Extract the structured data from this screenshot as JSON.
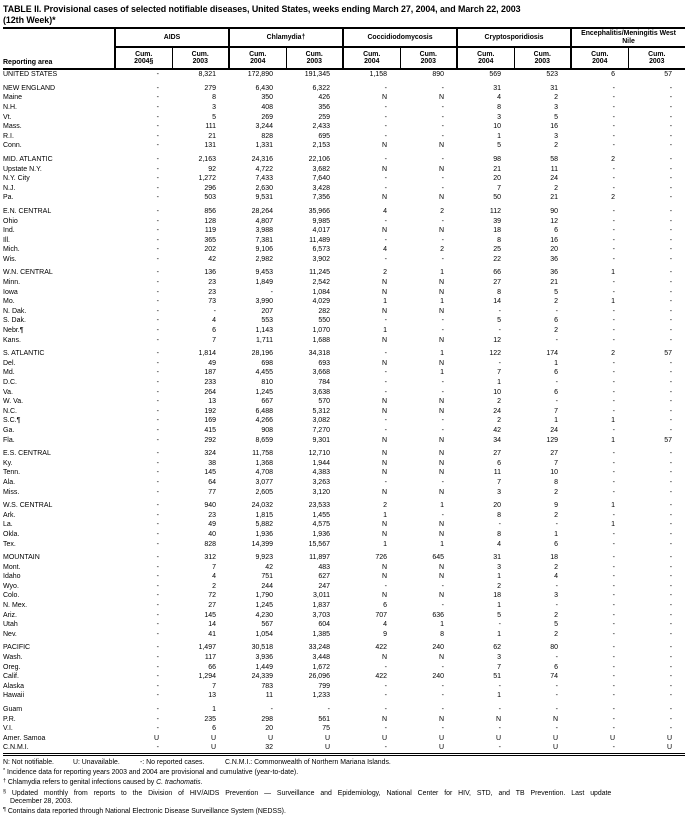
{
  "title": {
    "line1": "TABLE II. Provisional cases of selected notifiable diseases, United States, weeks ending March 27, 2004, and March 22, 2003",
    "line2": "(12th Week)*"
  },
  "header": {
    "reporting_area_label": "Reporting area",
    "groups": [
      {
        "label": "AIDS",
        "sub": [
          [
            "Cum.",
            "2004§"
          ],
          [
            "Cum.",
            "2003"
          ]
        ]
      },
      {
        "label": "Chlamydia†",
        "sub": [
          [
            "Cum.",
            "2004"
          ],
          [
            "Cum.",
            "2003"
          ]
        ]
      },
      {
        "label": "Coccidiodomycosis",
        "sub": [
          [
            "Cum.",
            "2004"
          ],
          [
            "Cum.",
            "2003"
          ]
        ]
      },
      {
        "label": "Cryptosporidiosis",
        "sub": [
          [
            "Cum.",
            "2004"
          ],
          [
            "Cum.",
            "2003"
          ]
        ]
      },
      {
        "label": "Encephalitis/Meningitis West Nile",
        "sub": [
          [
            "Cum.",
            "2004"
          ],
          [
            "Cum.",
            "2003"
          ]
        ]
      }
    ]
  },
  "sections": [
    {
      "rows": [
        [
          "UNITED STATES",
          [
            "-",
            "8,321",
            "172,890",
            "191,345",
            "1,158",
            "890",
            "569",
            "523",
            "6",
            "57"
          ]
        ]
      ]
    },
    {
      "rows": [
        [
          "NEW ENGLAND",
          [
            "-",
            "279",
            "6,430",
            "6,322",
            "-",
            "-",
            "31",
            "31",
            "-",
            "-"
          ]
        ],
        [
          "Maine",
          [
            "-",
            "8",
            "350",
            "426",
            "N",
            "N",
            "4",
            "2",
            "-",
            "-"
          ]
        ],
        [
          "N.H.",
          [
            "-",
            "3",
            "408",
            "356",
            "-",
            "-",
            "8",
            "3",
            "-",
            "-"
          ]
        ],
        [
          "Vt.",
          [
            "-",
            "5",
            "269",
            "259",
            "-",
            "-",
            "3",
            "5",
            "-",
            "-"
          ]
        ],
        [
          "Mass.",
          [
            "-",
            "111",
            "3,244",
            "2,433",
            "-",
            "-",
            "10",
            "16",
            "-",
            "-"
          ]
        ],
        [
          "R.I.",
          [
            "-",
            "21",
            "828",
            "695",
            "-",
            "-",
            "1",
            "3",
            "-",
            "-"
          ]
        ],
        [
          "Conn.",
          [
            "-",
            "131",
            "1,331",
            "2,153",
            "N",
            "N",
            "5",
            "2",
            "-",
            "-"
          ]
        ]
      ]
    },
    {
      "rows": [
        [
          "MID. ATLANTIC",
          [
            "-",
            "2,163",
            "24,316",
            "22,106",
            "-",
            "-",
            "98",
            "58",
            "2",
            "-"
          ]
        ],
        [
          "Upstate N.Y.",
          [
            "-",
            "92",
            "4,722",
            "3,682",
            "N",
            "N",
            "21",
            "11",
            "-",
            "-"
          ]
        ],
        [
          "N.Y. City",
          [
            "-",
            "1,272",
            "7,433",
            "7,640",
            "-",
            "-",
            "20",
            "24",
            "-",
            "-"
          ]
        ],
        [
          "N.J.",
          [
            "-",
            "296",
            "2,630",
            "3,428",
            "-",
            "-",
            "7",
            "2",
            "-",
            "-"
          ]
        ],
        [
          "Pa.",
          [
            "-",
            "503",
            "9,531",
            "7,356",
            "N",
            "N",
            "50",
            "21",
            "2",
            "-"
          ]
        ]
      ]
    },
    {
      "rows": [
        [
          "E.N. CENTRAL",
          [
            "-",
            "856",
            "28,264",
            "35,966",
            "4",
            "2",
            "112",
            "90",
            "-",
            "-"
          ]
        ],
        [
          "Ohio",
          [
            "-",
            "128",
            "4,807",
            "9,985",
            "-",
            "-",
            "39",
            "12",
            "-",
            "-"
          ]
        ],
        [
          "Ind.",
          [
            "-",
            "119",
            "3,988",
            "4,017",
            "N",
            "N",
            "18",
            "6",
            "-",
            "-"
          ]
        ],
        [
          "Ill.",
          [
            "-",
            "365",
            "7,381",
            "11,489",
            "-",
            "-",
            "8",
            "16",
            "-",
            "-"
          ]
        ],
        [
          "Mich.",
          [
            "-",
            "202",
            "9,106",
            "6,573",
            "4",
            "2",
            "25",
            "20",
            "-",
            "-"
          ]
        ],
        [
          "Wis.",
          [
            "-",
            "42",
            "2,982",
            "3,902",
            "-",
            "-",
            "22",
            "36",
            "-",
            "-"
          ]
        ]
      ]
    },
    {
      "rows": [
        [
          "W.N. CENTRAL",
          [
            "-",
            "136",
            "9,453",
            "11,245",
            "2",
            "1",
            "66",
            "36",
            "1",
            "-"
          ]
        ],
        [
          "Minn.",
          [
            "-",
            "23",
            "1,849",
            "2,542",
            "N",
            "N",
            "27",
            "21",
            "-",
            "-"
          ]
        ],
        [
          "Iowa",
          [
            "-",
            "23",
            "-",
            "1,084",
            "N",
            "N",
            "8",
            "5",
            "-",
            "-"
          ]
        ],
        [
          "Mo.",
          [
            "-",
            "73",
            "3,990",
            "4,029",
            "1",
            "1",
            "14",
            "2",
            "1",
            "-"
          ]
        ],
        [
          "N. Dak.",
          [
            "-",
            "-",
            "207",
            "282",
            "N",
            "N",
            "-",
            "-",
            "-",
            "-"
          ]
        ],
        [
          "S. Dak.",
          [
            "-",
            "4",
            "553",
            "550",
            "-",
            "-",
            "5",
            "6",
            "-",
            "-"
          ]
        ],
        [
          "Nebr.¶",
          [
            "-",
            "6",
            "1,143",
            "1,070",
            "1",
            "-",
            "-",
            "2",
            "-",
            "-"
          ]
        ],
        [
          "Kans.",
          [
            "-",
            "7",
            "1,711",
            "1,688",
            "N",
            "N",
            "12",
            "-",
            "-",
            "-"
          ]
        ]
      ]
    },
    {
      "rows": [
        [
          "S. ATLANTIC",
          [
            "-",
            "1,814",
            "28,196",
            "34,318",
            "-",
            "1",
            "122",
            "174",
            "2",
            "57"
          ]
        ],
        [
          "Del.",
          [
            "-",
            "49",
            "698",
            "693",
            "N",
            "N",
            "-",
            "1",
            "-",
            "-"
          ]
        ],
        [
          "Md.",
          [
            "-",
            "187",
            "4,455",
            "3,668",
            "-",
            "1",
            "7",
            "6",
            "-",
            "-"
          ]
        ],
        [
          "D.C.",
          [
            "-",
            "233",
            "810",
            "784",
            "-",
            "-",
            "1",
            "-",
            "-",
            "-"
          ]
        ],
        [
          "Va.",
          [
            "-",
            "264",
            "1,245",
            "3,638",
            "-",
            "-",
            "10",
            "6",
            "-",
            "-"
          ]
        ],
        [
          "W. Va.",
          [
            "-",
            "13",
            "667",
            "570",
            "N",
            "N",
            "2",
            "-",
            "-",
            "-"
          ]
        ],
        [
          "N.C.",
          [
            "-",
            "192",
            "6,488",
            "5,312",
            "N",
            "N",
            "24",
            "7",
            "-",
            "-"
          ]
        ],
        [
          "S.C.¶",
          [
            "-",
            "169",
            "4,266",
            "3,082",
            "-",
            "-",
            "2",
            "1",
            "1",
            "-"
          ]
        ],
        [
          "Ga.",
          [
            "-",
            "415",
            "908",
            "7,270",
            "-",
            "-",
            "42",
            "24",
            "-",
            "-"
          ]
        ],
        [
          "Fla.",
          [
            "-",
            "292",
            "8,659",
            "9,301",
            "N",
            "N",
            "34",
            "129",
            "1",
            "57"
          ]
        ]
      ]
    },
    {
      "rows": [
        [
          "E.S. CENTRAL",
          [
            "-",
            "324",
            "11,758",
            "12,710",
            "N",
            "N",
            "27",
            "27",
            "-",
            "-"
          ]
        ],
        [
          "Ky.",
          [
            "-",
            "38",
            "1,368",
            "1,944",
            "N",
            "N",
            "6",
            "7",
            "-",
            "-"
          ]
        ],
        [
          "Tenn.",
          [
            "-",
            "145",
            "4,708",
            "4,383",
            "N",
            "N",
            "11",
            "10",
            "-",
            "-"
          ]
        ],
        [
          "Ala.",
          [
            "-",
            "64",
            "3,077",
            "3,263",
            "-",
            "-",
            "7",
            "8",
            "-",
            "-"
          ]
        ],
        [
          "Miss.",
          [
            "-",
            "77",
            "2,605",
            "3,120",
            "N",
            "N",
            "3",
            "2",
            "-",
            "-"
          ]
        ]
      ]
    },
    {
      "rows": [
        [
          "W.S. CENTRAL",
          [
            "-",
            "940",
            "24,032",
            "23,533",
            "2",
            "1",
            "20",
            "9",
            "1",
            "-"
          ]
        ],
        [
          "Ark.",
          [
            "-",
            "23",
            "1,815",
            "1,455",
            "1",
            "-",
            "8",
            "2",
            "-",
            "-"
          ]
        ],
        [
          "La.",
          [
            "-",
            "49",
            "5,882",
            "4,575",
            "N",
            "N",
            "-",
            "-",
            "1",
            "-"
          ]
        ],
        [
          "Okla.",
          [
            "-",
            "40",
            "1,936",
            "1,936",
            "N",
            "N",
            "8",
            "1",
            "-",
            "-"
          ]
        ],
        [
          "Tex.",
          [
            "-",
            "828",
            "14,399",
            "15,567",
            "1",
            "1",
            "4",
            "6",
            "-",
            "-"
          ]
        ]
      ]
    },
    {
      "rows": [
        [
          "MOUNTAIN",
          [
            "-",
            "312",
            "9,923",
            "11,897",
            "726",
            "645",
            "31",
            "18",
            "-",
            "-"
          ]
        ],
        [
          "Mont.",
          [
            "-",
            "7",
            "42",
            "483",
            "N",
            "N",
            "3",
            "2",
            "-",
            "-"
          ]
        ],
        [
          "Idaho",
          [
            "-",
            "4",
            "751",
            "627",
            "N",
            "N",
            "1",
            "4",
            "-",
            "-"
          ]
        ],
        [
          "Wyo.",
          [
            "-",
            "2",
            "244",
            "247",
            "-",
            "-",
            "2",
            "-",
            "-",
            "-"
          ]
        ],
        [
          "Colo.",
          [
            "-",
            "72",
            "1,790",
            "3,011",
            "N",
            "N",
            "18",
            "3",
            "-",
            "-"
          ]
        ],
        [
          "N. Mex.",
          [
            "-",
            "27",
            "1,245",
            "1,837",
            "6",
            "-",
            "1",
            "-",
            "-",
            "-"
          ]
        ],
        [
          "Ariz.",
          [
            "-",
            "145",
            "4,230",
            "3,703",
            "707",
            "636",
            "5",
            "2",
            "-",
            "-"
          ]
        ],
        [
          "Utah",
          [
            "-",
            "14",
            "567",
            "604",
            "4",
            "1",
            "-",
            "5",
            "-",
            "-"
          ]
        ],
        [
          "Nev.",
          [
            "-",
            "41",
            "1,054",
            "1,385",
            "9",
            "8",
            "1",
            "2",
            "-",
            "-"
          ]
        ]
      ]
    },
    {
      "rows": [
        [
          "PACIFIC",
          [
            "-",
            "1,497",
            "30,518",
            "33,248",
            "422",
            "240",
            "62",
            "80",
            "-",
            "-"
          ]
        ],
        [
          "Wash.",
          [
            "-",
            "117",
            "3,936",
            "3,448",
            "N",
            "N",
            "3",
            "-",
            "-",
            "-"
          ]
        ],
        [
          "Oreg.",
          [
            "-",
            "66",
            "1,449",
            "1,672",
            "-",
            "-",
            "7",
            "6",
            "-",
            "-"
          ]
        ],
        [
          "Calif.",
          [
            "-",
            "1,294",
            "24,339",
            "26,096",
            "422",
            "240",
            "51",
            "74",
            "-",
            "-"
          ]
        ],
        [
          "Alaska",
          [
            "-",
            "7",
            "783",
            "799",
            "-",
            "-",
            "-",
            "-",
            "-",
            "-"
          ]
        ],
        [
          "Hawaii",
          [
            "-",
            "13",
            "11",
            "1,233",
            "-",
            "-",
            "1",
            "-",
            "-",
            "-"
          ]
        ]
      ]
    },
    {
      "rows": [
        [
          "Guam",
          [
            "-",
            "1",
            "-",
            "-",
            "-",
            "-",
            "-",
            "-",
            "-",
            "-"
          ]
        ],
        [
          "P.R.",
          [
            "-",
            "235",
            "298",
            "561",
            "N",
            "N",
            "N",
            "N",
            "-",
            "-"
          ]
        ],
        [
          "V.I.",
          [
            "-",
            "6",
            "20",
            "75",
            "-",
            "-",
            "-",
            "-",
            "-",
            "-"
          ]
        ],
        [
          "Amer. Samoa",
          [
            "U",
            "U",
            "U",
            "U",
            "U",
            "U",
            "U",
            "U",
            "U",
            "U"
          ]
        ],
        [
          "C.N.M.I.",
          [
            "-",
            "U",
            "32",
            "U",
            "-",
            "U",
            "-",
            "U",
            "-",
            "U"
          ]
        ]
      ]
    }
  ],
  "footnotes": {
    "legend": [
      "N: Not notifiable.",
      "U: Unavailable.",
      "-: No reported cases.",
      "C.N.M.I.: Commonwealth of Northern Mariana Islands."
    ],
    "notes": [
      {
        "marker": "*",
        "text": "Incidence data for reporting years 2003 and 2004 are provisional and cumulative (year-to-date)."
      },
      {
        "marker": "†",
        "text": "Chlamydia refers to genital infections caused by ",
        "italic": "C. trachomatis",
        "after": "."
      },
      {
        "marker": "§",
        "text": "Updated monthly from reports to the Division of HIV/AIDS Prevention — Surveillance and Epidemiology, National Center for HIV, STD, and TB Prevention. Last update",
        "text2": "December 28, 2003.",
        "wide": true
      },
      {
        "marker": "¶",
        "text": "Contains data reported through National Electronic Disease Surveillance System (NEDSS)."
      }
    ]
  }
}
